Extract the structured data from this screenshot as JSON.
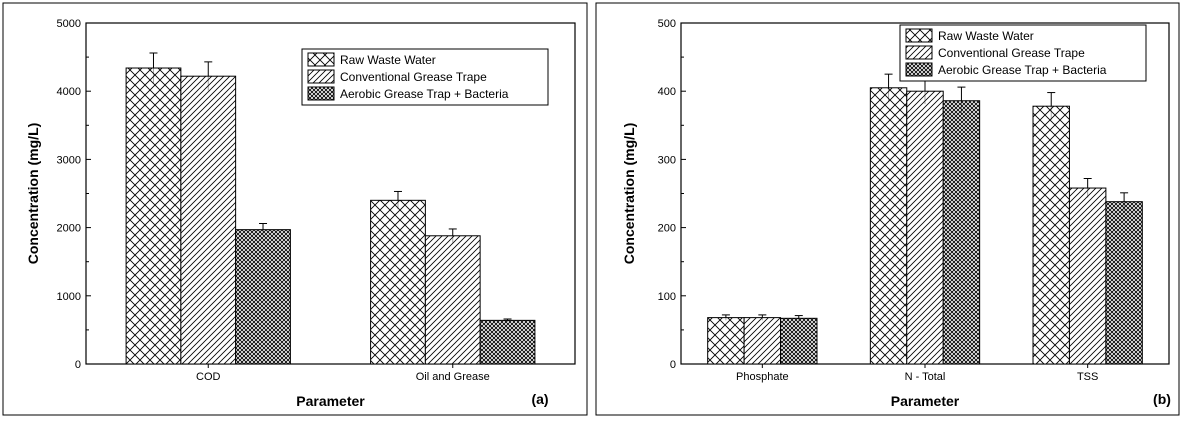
{
  "chart_data": [
    {
      "type": "bar",
      "panel_label": "(a)",
      "categories": [
        "COD",
        "Oil and Grease"
      ],
      "series": [
        {
          "name": "Raw Waste Water",
          "pattern": "crosshatch",
          "values": [
            4340,
            2400
          ],
          "errors": [
            220,
            130
          ]
        },
        {
          "name": "Conventional Grease Trape",
          "pattern": "diagonal",
          "values": [
            4220,
            1880
          ],
          "errors": [
            210,
            100
          ]
        },
        {
          "name": "Aerobic Grease Trap + Bacteria",
          "pattern": "dense-crosshatch",
          "values": [
            1970,
            640
          ],
          "errors": [
            90,
            20
          ]
        }
      ],
      "title": "",
      "xlabel": "Parameter",
      "ylabel": "Concentration (mg/L)",
      "ylim": [
        0,
        5000
      ],
      "yticks": [
        "0",
        "1000",
        "2000",
        "3000",
        "4000",
        "5000"
      ],
      "grid": false,
      "legend_position": "top-right"
    },
    {
      "type": "bar",
      "panel_label": "(b)",
      "categories": [
        "Phosphate",
        "N - Total",
        "TSS"
      ],
      "series": [
        {
          "name": "Raw Waste Water",
          "pattern": "crosshatch",
          "values": [
            68,
            405,
            378
          ],
          "errors": [
            4,
            20,
            20
          ]
        },
        {
          "name": "Conventional Grease Trape",
          "pattern": "diagonal",
          "values": [
            68,
            400,
            258
          ],
          "errors": [
            4,
            19,
            14
          ]
        },
        {
          "name": "Aerobic Grease Trap + Bacteria",
          "pattern": "dense-crosshatch",
          "values": [
            67,
            386,
            238
          ],
          "errors": [
            4,
            20,
            13
          ]
        }
      ],
      "title": "",
      "xlabel": "Parameter",
      "ylabel": "Concentration (mg/L)",
      "ylim": [
        0,
        500
      ],
      "yticks": [
        "0",
        "100",
        "200",
        "300",
        "400",
        "500"
      ],
      "grid": false,
      "legend_position": "top-right"
    }
  ]
}
